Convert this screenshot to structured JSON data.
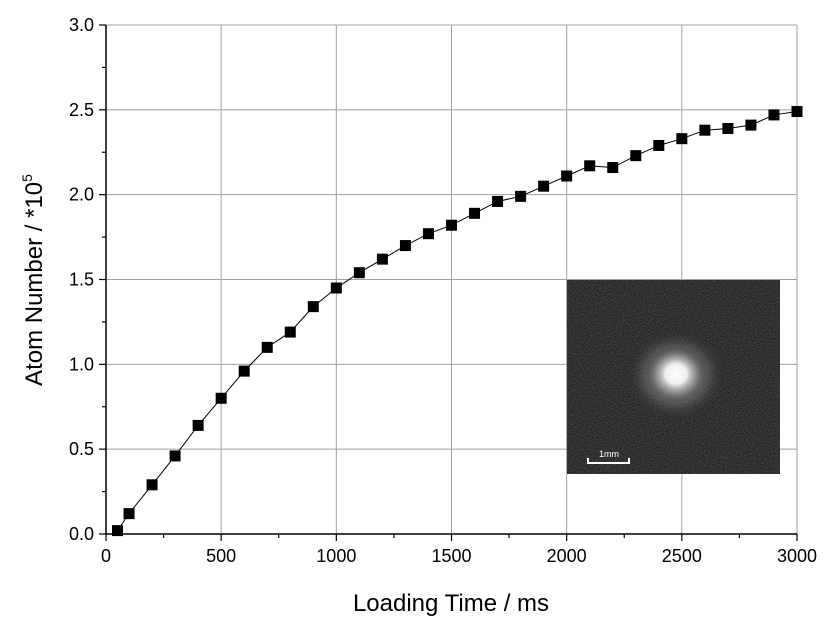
{
  "chart_data": {
    "type": "scatter",
    "title": "",
    "xlabel": "Loading Time / ms",
    "ylabel_main": "Atom Number / *10",
    "ylabel_exponent": "5",
    "xlim": [
      0,
      3000
    ],
    "ylim": [
      0,
      3.0
    ],
    "grid": true,
    "xticks": [
      0,
      500,
      1000,
      1500,
      2000,
      2500,
      3000
    ],
    "xtick_labels": [
      "0",
      "500",
      "1000",
      "1500",
      "2000",
      "2500",
      "3000"
    ],
    "yticks": [
      0,
      0.5,
      1.0,
      1.5,
      2.0,
      2.5,
      3.0
    ],
    "ytick_labels": [
      "0.0",
      "0.5",
      "1.0",
      "1.5",
      "2.0",
      "2.5",
      "3.0"
    ],
    "series": [
      {
        "marker": "square",
        "connected": true,
        "color": "#000000",
        "x": [
          50,
          100,
          200,
          300,
          400,
          500,
          600,
          700,
          800,
          900,
          1000,
          1100,
          1200,
          1300,
          1400,
          1500,
          1600,
          1700,
          1800,
          1900,
          2000,
          2100,
          2200,
          2300,
          2400,
          2500,
          2600,
          2700,
          2800,
          2900,
          3000
        ],
        "y": [
          0.02,
          0.12,
          0.29,
          0.46,
          0.64,
          0.8,
          0.96,
          1.1,
          1.19,
          1.34,
          1.45,
          1.54,
          1.62,
          1.7,
          1.77,
          1.82,
          1.89,
          1.96,
          1.99,
          2.05,
          2.11,
          2.17,
          2.16,
          2.23,
          2.29,
          2.33,
          2.38,
          2.39,
          2.41,
          2.47,
          2.49
        ]
      }
    ],
    "inset": {
      "description_label": "1mm",
      "background": "#080808",
      "glow_color": "#ffffff"
    }
  }
}
